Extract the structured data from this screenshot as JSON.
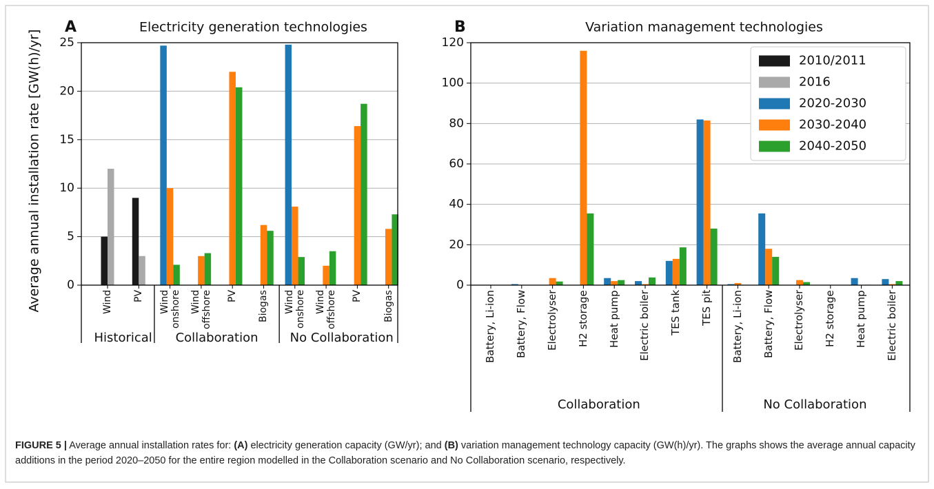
{
  "chart_data": [
    {
      "type": "bar",
      "panel": "A",
      "title": "Electricity generation technologies",
      "ylabel": "Average annual installation rate [GW(h)/yr]",
      "ylim": [
        0,
        25
      ],
      "yticks": [
        0,
        5,
        10,
        15,
        20,
        25
      ],
      "grid": true,
      "groups": [
        {
          "name": "Historical",
          "categories": [
            "Wind",
            "PV"
          ]
        },
        {
          "name": "Collaboration",
          "categories": [
            "Wind onshore",
            "Wind offshore",
            "PV",
            "Biogas"
          ]
        },
        {
          "name": "No Collaboration",
          "categories": [
            "Wind onshore",
            "Wind offshore",
            "PV",
            "Biogas"
          ]
        }
      ],
      "series": [
        {
          "name": "2010/2011",
          "color": "#1a1a1a",
          "values": [
            5,
            9,
            null,
            null,
            null,
            null,
            null,
            null,
            null,
            null
          ]
        },
        {
          "name": "2016",
          "color": "#a9a9a9",
          "values": [
            12,
            3,
            null,
            null,
            null,
            null,
            null,
            null,
            null,
            null
          ]
        },
        {
          "name": "2020-2030",
          "color": "#1f77b4",
          "values": [
            null,
            null,
            24.7,
            0,
            0,
            0,
            24.8,
            0,
            0,
            0
          ]
        },
        {
          "name": "2030-2040",
          "color": "#ff7f0e",
          "values": [
            null,
            null,
            10,
            3,
            22,
            6.2,
            8.1,
            2,
            16.4,
            5.8
          ]
        },
        {
          "name": "2040-2050",
          "color": "#2ca02c",
          "values": [
            null,
            null,
            2.1,
            3.3,
            20.4,
            5.6,
            2.9,
            3.5,
            18.7,
            7.3
          ]
        }
      ]
    },
    {
      "type": "bar",
      "panel": "B",
      "title": "Variation management technologies",
      "ylim": [
        0,
        120
      ],
      "yticks": [
        0,
        20,
        40,
        60,
        80,
        100,
        120
      ],
      "grid": true,
      "legend": "upper right",
      "groups": [
        {
          "name": "Collaboration",
          "categories": [
            "Battery, Li-ion",
            "Battery, Flow",
            "Electrolyser",
            "H2 storage",
            "Heat pump",
            "Electric boiler",
            "TES tank",
            "TES pit"
          ]
        },
        {
          "name": "No Collaboration",
          "categories": [
            "Battery, Li-ion",
            "Battery, Flow",
            "Electrolyser",
            "H2 storage",
            "Heat pump",
            "Electric boiler"
          ]
        }
      ],
      "series": [
        {
          "name": "2010/2011",
          "color": "#1a1a1a",
          "values": [
            null,
            null,
            null,
            null,
            null,
            null,
            null,
            null,
            null,
            null,
            null,
            null,
            null,
            null
          ]
        },
        {
          "name": "2016",
          "color": "#a9a9a9",
          "values": [
            null,
            null,
            null,
            null,
            null,
            null,
            null,
            null,
            null,
            null,
            null,
            null,
            null,
            null
          ]
        },
        {
          "name": "2020-2030",
          "color": "#1f77b4",
          "values": [
            0,
            0.5,
            0,
            0,
            3.5,
            2,
            12,
            82,
            0.5,
            35.5,
            0,
            0,
            3.5,
            3
          ]
        },
        {
          "name": "2030-2040",
          "color": "#ff7f0e",
          "values": [
            0,
            0,
            3.5,
            116,
            2,
            0.5,
            13,
            81.5,
            1,
            18,
            2.5,
            0,
            0,
            0.5
          ]
        },
        {
          "name": "2040-2050",
          "color": "#2ca02c",
          "values": [
            0,
            0,
            1.8,
            35.5,
            2.5,
            3.8,
            18.7,
            28,
            0,
            14,
            1.5,
            0,
            0.2,
            2
          ]
        }
      ]
    }
  ],
  "caption": [
    {
      "text": "FIGURE 5 |",
      "bold": true
    },
    {
      "text": " Average annual installation rates for: ",
      "bold": false
    },
    {
      "text": "(A)",
      "bold": true
    },
    {
      "text": " electricity generation capacity (GW/yr); and ",
      "bold": false
    },
    {
      "text": "(B)",
      "bold": true
    },
    {
      "text": " variation management technology capacity (GW(h)/yr). The graphs shows the average annual capacity additions in the period 2020–2050 for the entire region modelled in the Collaboration scenario and No Collaboration scenario, respectively.",
      "bold": false
    }
  ]
}
